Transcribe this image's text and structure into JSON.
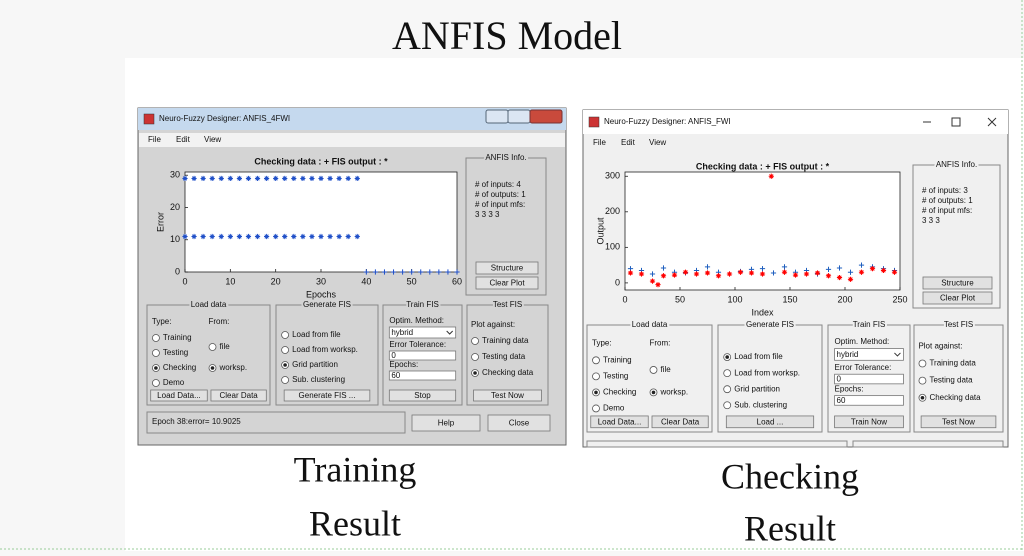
{
  "slide": {
    "title": "ANFIS Model",
    "captions": [
      [
        "Training",
        "Result"
      ],
      [
        "Checking",
        "Result"
      ]
    ]
  },
  "windows": [
    {
      "title": "Neuro-Fuzzy Designer: ANFIS_4FWI",
      "menu": [
        "File",
        "Edit",
        "View"
      ],
      "plot": {
        "type": "scatter",
        "title": "Checking data : +   FIS output : *",
        "x_label": "Epochs",
        "y_label": "Error",
        "xlim": [
          0,
          60
        ],
        "ylim": [
          0,
          31
        ],
        "xticks": [
          0,
          10,
          20,
          30,
          40,
          50,
          60
        ],
        "yticks": [
          0,
          10,
          20,
          30
        ],
        "series": [
          {
            "color": "#1f4fc8",
            "marker": "*",
            "x": [
              0,
              2,
              4,
              6,
              8,
              10,
              12,
              14,
              16,
              18,
              20,
              22,
              24,
              26,
              28,
              30,
              32,
              34,
              36,
              38
            ],
            "values": [
              29,
              29,
              29,
              29,
              29,
              29,
              29,
              29,
              29,
              29,
              29,
              29,
              29,
              29,
              29,
              29,
              29,
              29,
              29,
              29
            ]
          },
          {
            "color": "#1f4fc8",
            "marker": "*",
            "x": [
              0,
              2,
              4,
              6,
              8,
              10,
              12,
              14,
              16,
              18,
              20,
              22,
              24,
              26,
              28,
              30,
              32,
              34,
              36,
              38
            ],
            "values": [
              11,
              11,
              11,
              11,
              11,
              11,
              11,
              11,
              11,
              11,
              11,
              11,
              11,
              11,
              11,
              11,
              11,
              11,
              11,
              11
            ]
          },
          {
            "color": "#1f4fc8",
            "marker": "+",
            "x": [
              40,
              42,
              44,
              46,
              48,
              50,
              52,
              54,
              56,
              58,
              60
            ],
            "values": [
              0,
              0,
              0,
              0,
              0,
              0,
              0,
              0,
              0,
              0,
              0
            ]
          }
        ]
      },
      "info": {
        "title": "ANFIS Info.",
        "lines": [
          "# of inputs: 4",
          "# of outputs: 1",
          "# of input mfs:",
          "3 3 3 3"
        ],
        "buttons": [
          "Structure",
          "Clear Plot"
        ]
      },
      "panels": [
        {
          "title": "Load data",
          "items": [
            {
              "kind": "label",
              "text": "Type:"
            },
            {
              "kind": "label",
              "text": "From:"
            },
            {
              "kind": "radio",
              "text": "Training",
              "selected": false
            },
            {
              "kind": "radio",
              "text": "Testing",
              "selected": false
            },
            {
              "kind": "radio",
              "text": "Checking",
              "selected": true
            },
            {
              "kind": "radio",
              "text": "Demo",
              "selected": false
            },
            {
              "kind": "radio",
              "text": "file",
              "selected": false
            },
            {
              "kind": "radio",
              "text": "worksp.",
              "selected": true
            },
            {
              "kind": "button",
              "text": "Load Data..."
            },
            {
              "kind": "button",
              "text": "Clear Data"
            }
          ]
        },
        {
          "title": "Generate FIS",
          "items": [
            {
              "kind": "radio",
              "text": "Load from file",
              "selected": false
            },
            {
              "kind": "radio",
              "text": "Load from worksp.",
              "selected": false
            },
            {
              "kind": "radio",
              "text": "Grid partition",
              "selected": true
            },
            {
              "kind": "radio",
              "text": "Sub. clustering",
              "selected": false
            },
            {
              "kind": "button",
              "text": "Generate FIS ..."
            }
          ]
        },
        {
          "title": "Train FIS",
          "items": [
            {
              "kind": "label",
              "text": "Optim. Method:"
            },
            {
              "kind": "select",
              "text": "hybrid"
            },
            {
              "kind": "label",
              "text": "Error Tolerance:"
            },
            {
              "kind": "input",
              "text": "0"
            },
            {
              "kind": "label",
              "text": "Epochs:"
            },
            {
              "kind": "input",
              "text": "60"
            },
            {
              "kind": "button",
              "text": "Stop"
            }
          ]
        },
        {
          "title": "Test FIS",
          "items": [
            {
              "kind": "label",
              "text": "Plot against:"
            },
            {
              "kind": "radio",
              "text": "Training data",
              "selected": false
            },
            {
              "kind": "radio",
              "text": "Testing data",
              "selected": false
            },
            {
              "kind": "radio",
              "text": "Checking data",
              "selected": true
            },
            {
              "kind": "button",
              "text": "Test Now",
              "enabled": false
            }
          ]
        }
      ],
      "status": "Epoch 38:error= 10.9025",
      "buttons": [
        "Help",
        "Close"
      ]
    },
    {
      "title": "Neuro-Fuzzy Designer: ANFIS_FWI",
      "menu": [
        "File",
        "Edit",
        "View"
      ],
      "plot": {
        "type": "scatter",
        "title": "Checking data : +   FIS output : *",
        "x_label": "Index",
        "y_label": "Output",
        "xlim": [
          0,
          250
        ],
        "ylim": [
          -20,
          312
        ],
        "xticks": [
          0,
          50,
          100,
          150,
          200,
          250
        ],
        "yticks": [
          0,
          100,
          200,
          300
        ],
        "series": [
          {
            "color": "#1f5fbf",
            "marker": "+",
            "x": [
              5,
              15,
              25,
              35,
              45,
              55,
              65,
              75,
              85,
              95,
              105,
              115,
              125,
              135,
              145,
              155,
              165,
              175,
              185,
              195,
              205,
              215,
              225,
              235,
              245
            ],
            "values": [
              40,
              35,
              25,
              42,
              30,
              28,
              35,
              45,
              30,
              25,
              32,
              38,
              40,
              28,
              45,
              30,
              35,
              25,
              38,
              42,
              30,
              50,
              45,
              40,
              35
            ]
          },
          {
            "color": "#ff0000",
            "marker": "*",
            "x": [
              5,
              15,
              25,
              30,
              35,
              45,
              55,
              65,
              75,
              85,
              95,
              105,
              115,
              125,
              133,
              145,
              155,
              165,
              175,
              185,
              195,
              205,
              215,
              225,
              235,
              245
            ],
            "values": [
              28,
              25,
              5,
              -5,
              20,
              22,
              30,
              25,
              28,
              20,
              25,
              30,
              28,
              25,
              300,
              30,
              22,
              25,
              28,
              20,
              15,
              10,
              30,
              40,
              35,
              30
            ]
          }
        ]
      },
      "info": {
        "title": "ANFIS Info.",
        "lines": [
          "# of inputs: 3",
          "# of outputs: 1",
          "# of input mfs:",
          "3 3 3"
        ],
        "buttons": [
          "Structure",
          "Clear Plot"
        ]
      },
      "panels": [
        {
          "title": "Load data",
          "items": [
            {
              "kind": "label",
              "text": "Type:"
            },
            {
              "kind": "label",
              "text": "From:"
            },
            {
              "kind": "radio",
              "text": "Training",
              "selected": false
            },
            {
              "kind": "radio",
              "text": "Testing",
              "selected": false
            },
            {
              "kind": "radio",
              "text": "Checking",
              "selected": true
            },
            {
              "kind": "radio",
              "text": "Demo",
              "selected": false
            },
            {
              "kind": "radio",
              "text": "file",
              "selected": false
            },
            {
              "kind": "radio",
              "text": "worksp.",
              "selected": true
            },
            {
              "kind": "button",
              "text": "Load Data..."
            },
            {
              "kind": "button",
              "text": "Clear Data"
            }
          ]
        },
        {
          "title": "Generate FIS",
          "items": [
            {
              "kind": "radio",
              "text": "Load from file",
              "selected": true
            },
            {
              "kind": "radio",
              "text": "Load from worksp.",
              "selected": false
            },
            {
              "kind": "radio",
              "text": "Grid partition",
              "selected": false
            },
            {
              "kind": "radio",
              "text": "Sub. clustering",
              "selected": false
            },
            {
              "kind": "button",
              "text": "Load ..."
            }
          ]
        },
        {
          "title": "Train FIS",
          "items": [
            {
              "kind": "label",
              "text": "Optim. Method:"
            },
            {
              "kind": "select",
              "text": "hybrid"
            },
            {
              "kind": "label",
              "text": "Error Tolerance:"
            },
            {
              "kind": "input",
              "text": "0"
            },
            {
              "kind": "label",
              "text": "Epochs:"
            },
            {
              "kind": "input",
              "text": "60"
            },
            {
              "kind": "button",
              "text": "Train Now"
            }
          ]
        },
        {
          "title": "Test FIS",
          "items": [
            {
              "kind": "label",
              "text": "Plot against:"
            },
            {
              "kind": "radio",
              "text": "Training data",
              "selected": false
            },
            {
              "kind": "radio",
              "text": "Testing data",
              "selected": false
            },
            {
              "kind": "radio",
              "text": "Checking data",
              "selected": true
            },
            {
              "kind": "button",
              "text": "Test Now",
              "enabled": true
            }
          ]
        }
      ]
    }
  ]
}
